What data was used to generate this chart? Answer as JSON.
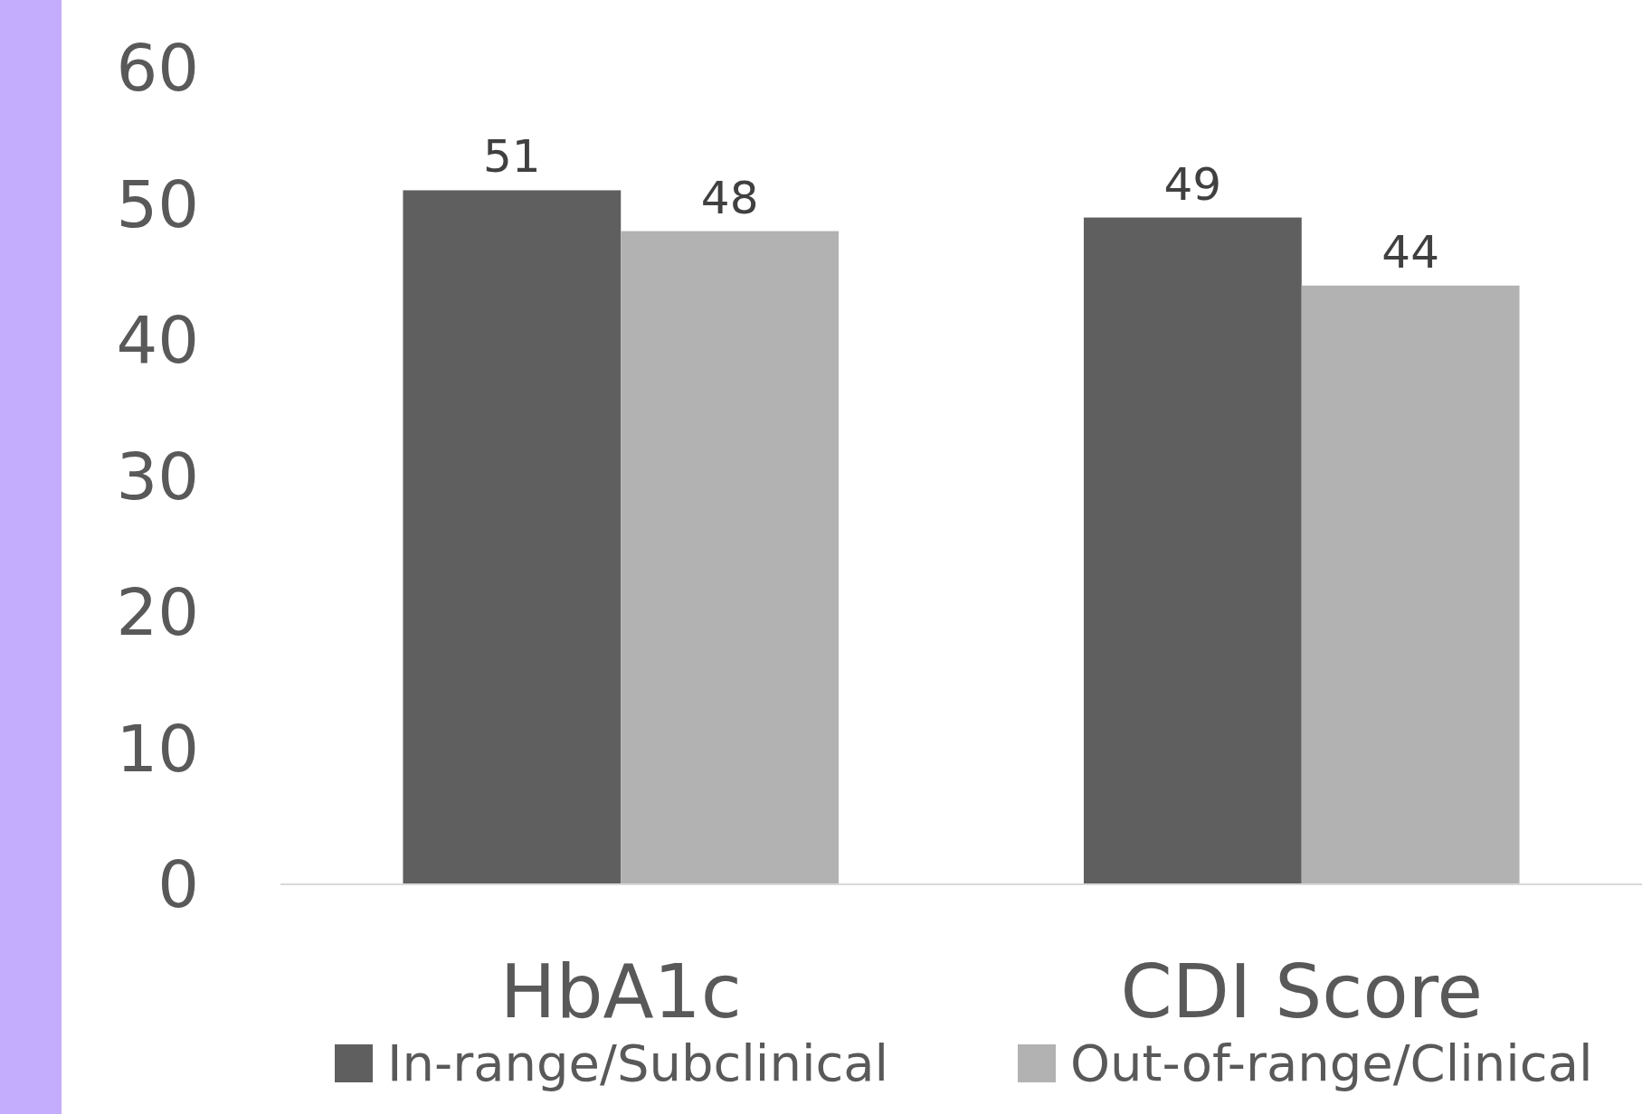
{
  "chart_data": {
    "type": "bar",
    "categories": [
      "HbA1c",
      "CDI Score"
    ],
    "series": [
      {
        "name": "In-range/Subclinical",
        "color": "#5f5f5f",
        "values": [
          51,
          49
        ]
      },
      {
        "name": "Out-of-range/Clinical",
        "color": "#b2b2b2",
        "values": [
          48,
          44
        ]
      }
    ],
    "ylim": [
      0,
      60
    ],
    "yticks": [
      0,
      10,
      20,
      30,
      40,
      50,
      60
    ],
    "data_labels": true,
    "legend": "bottom",
    "grid": false
  }
}
